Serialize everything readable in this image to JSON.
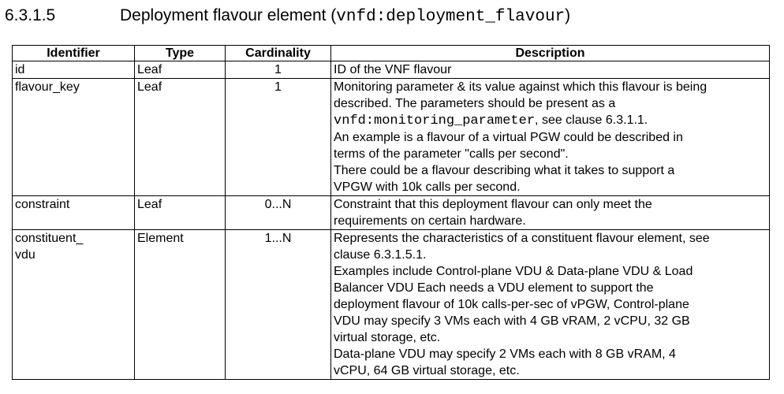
{
  "heading": {
    "clause": "6.3.1.5",
    "title": "Deployment flavour element",
    "code_open": " (",
    "code": "vnfd:deployment_flavour",
    "code_close": ")"
  },
  "table": {
    "headers": {
      "identifier": "Identifier",
      "type": "Type",
      "cardinality": "Cardinality",
      "description": "Description"
    },
    "rows": [
      {
        "identifier_lines": [
          "id"
        ],
        "type": "Leaf",
        "cardinality": "1",
        "description_lines": [
          "ID of the VNF flavour"
        ]
      },
      {
        "identifier_lines": [
          "flavour_key"
        ],
        "type": "Leaf",
        "cardinality": "1",
        "description_lines": [
          "Monitoring parameter & its value against which this flavour is being",
          "described. The parameters should be present as a"
        ],
        "description_code": "vnfd:monitoring_parameter",
        "description_code_tail": ", see clause 6.3.1.1.",
        "description_more": [
          "An example is a flavour of a virtual PGW could be described in",
          "terms of the parameter \"calls per second\".",
          "There could be a flavour describing what it takes to support a",
          "VPGW with 10k calls per second."
        ]
      },
      {
        "identifier_lines": [
          "constraint"
        ],
        "type": "Leaf",
        "cardinality": "0...N",
        "description_lines": [
          "Constraint that this deployment flavour can only meet the",
          "requirements on certain hardware."
        ]
      },
      {
        "identifier_lines": [
          "constituent_",
          "vdu"
        ],
        "type": "Element",
        "cardinality": "1...N",
        "description_lines": [
          "Represents the characteristics of a constituent flavour element, see",
          "clause 6.3.1.5.1.",
          "Examples include Control-plane VDU & Data-plane VDU & Load",
          "Balancer VDU Each needs a VDU element to support the",
          "deployment flavour of 10k calls-per-sec of vPGW, Control-plane",
          "VDU may specify 3 VMs each with 4 GB vRAM, 2 vCPU, 32 GB",
          "virtual storage, etc.",
          "Data-plane VDU may specify 2 VMs each with 8 GB vRAM, 4",
          "vCPU, 64 GB virtual storage, etc."
        ]
      }
    ]
  }
}
